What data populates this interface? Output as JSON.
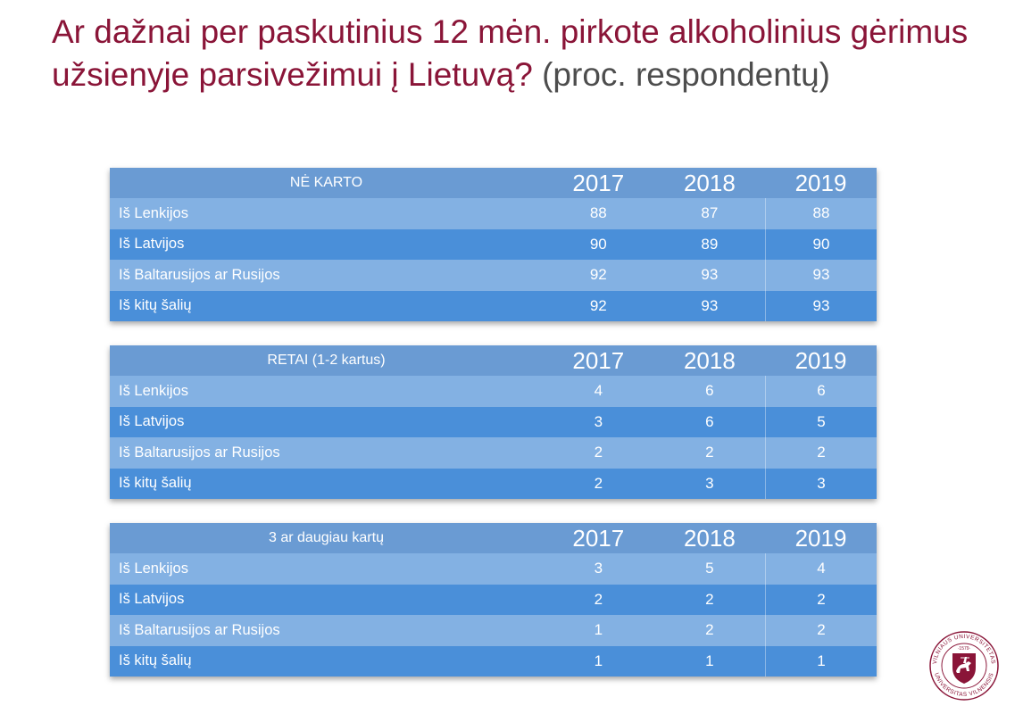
{
  "title": {
    "main": "Ar dažnai per paskutinius 12 mėn. pirkote alkoholinius gėrimus užsienyje parsivežimui į Lietuvą?",
    "suffix": "(proc. respondentų)"
  },
  "years": [
    "2017",
    "2018",
    "2019"
  ],
  "tables": [
    {
      "header": "NĖ KARTO",
      "rows": [
        {
          "label": "Iš Lenkijos",
          "values": [
            "88",
            "87",
            "88"
          ]
        },
        {
          "label": "Iš Latvijos",
          "values": [
            "90",
            "89",
            "90"
          ]
        },
        {
          "label": "Iš Baltarusijos ar Rusijos",
          "values": [
            "92",
            "93",
            "93"
          ]
        },
        {
          "label": "Iš kitų šalių",
          "values": [
            "92",
            "93",
            "93"
          ]
        }
      ]
    },
    {
      "header": "RETAI (1-2 kartus)",
      "rows": [
        {
          "label": "Iš Lenkijos",
          "values": [
            "4",
            "6",
            "6"
          ]
        },
        {
          "label": "Iš Latvijos",
          "values": [
            "3",
            "6",
            "5"
          ]
        },
        {
          "label": "Iš Baltarusijos ar Rusijos",
          "values": [
            "2",
            "2",
            "2"
          ]
        },
        {
          "label": "Iš kitų šalių",
          "values": [
            "2",
            "3",
            "3"
          ]
        }
      ]
    },
    {
      "header": "3 ar daugiau kartų",
      "rows": [
        {
          "label": "Iš Lenkijos",
          "values": [
            "3",
            "5",
            "4"
          ]
        },
        {
          "label": "Iš Latvijos",
          "values": [
            "2",
            "2",
            "2"
          ]
        },
        {
          "label": "Iš Baltarusijos ar Rusijos",
          "values": [
            "1",
            "2",
            "2"
          ]
        },
        {
          "label": "Iš kitų šalių",
          "values": [
            "1",
            "1",
            "1"
          ]
        }
      ]
    }
  ],
  "logo": {
    "icon": "vilnius-university-seal-icon",
    "ring_text": "VILNIAUS UNIVERSITETAS · UNIVERSITAS VILNENSIS",
    "year": "1579",
    "color": "#8a1538"
  }
}
